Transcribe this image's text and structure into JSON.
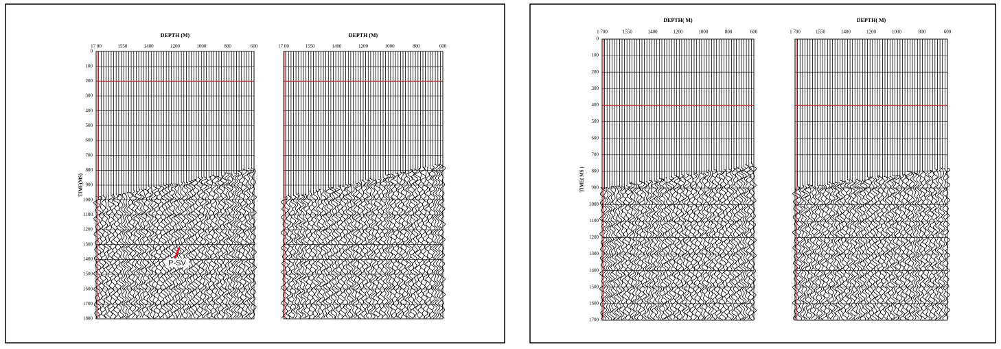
{
  "left_figure": {
    "time_label": "TIME(MS)",
    "time_ticks": [
      0,
      100,
      200,
      300,
      400,
      500,
      600,
      700,
      800,
      900,
      1000,
      1100,
      1200,
      1300,
      1400,
      1500,
      1600,
      1700,
      1800
    ],
    "annotation": "P-SV",
    "sections": [
      {
        "title": "DEPTH  (M)",
        "depth_ticks": [
          "17 00",
          "1550",
          "1400",
          "1200",
          "1000",
          "800",
          "600"
        ]
      },
      {
        "title": "DEPTH  (M)",
        "depth_ticks": [
          "17 00",
          "1550",
          "1400",
          "1200",
          "1000",
          "800",
          "600"
        ]
      }
    ]
  },
  "right_figure": {
    "time_label": "TIME( MS )",
    "time_ticks": [
      0,
      100,
      200,
      300,
      400,
      500,
      600,
      700,
      800,
      900,
      1000,
      1100,
      1200,
      1300,
      1400,
      1500,
      1600,
      1700
    ],
    "sections": [
      {
        "title": "DEPTH( M)",
        "depth_ticks": [
          "1 700",
          "1550",
          "1400",
          "1200",
          "1000",
          "800",
          "600"
        ]
      },
      {
        "title": "DEPTH( M)",
        "depth_ticks": [
          "1 700",
          "1550",
          "1400",
          "1200",
          "1000",
          "800",
          "600"
        ]
      }
    ]
  }
}
